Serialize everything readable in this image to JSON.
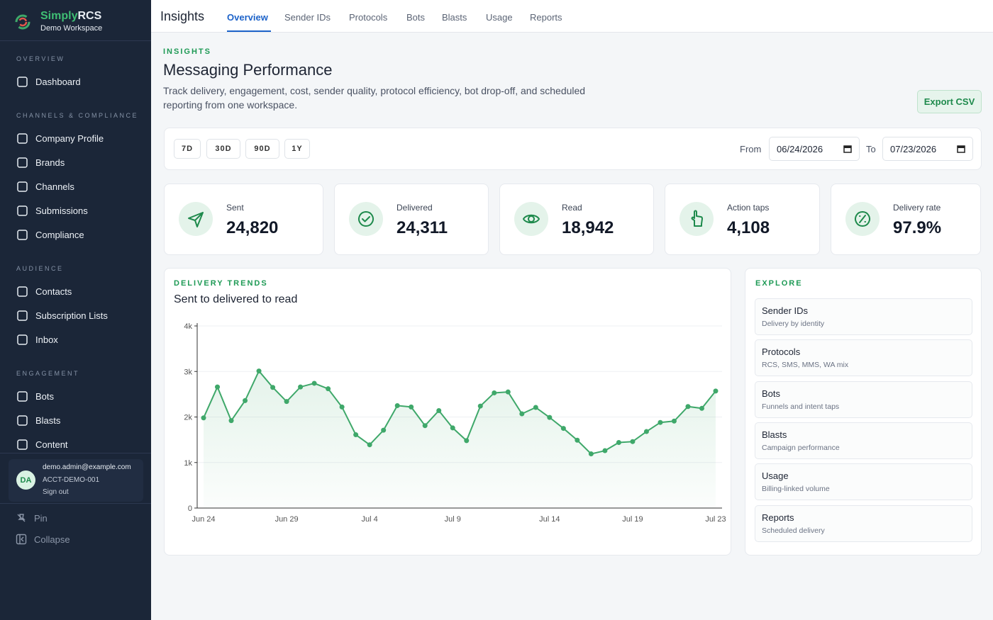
{
  "sidebar": {
    "brand": [
      "Simply",
      "RCS"
    ],
    "workspace": "Demo Workspace",
    "sections": [
      {
        "label": "OVERVIEW",
        "items": [
          "Dashboard"
        ]
      },
      {
        "label": "CHANNELS & COMPLIANCE",
        "items": [
          "Company Profile",
          "Brands",
          "Channels",
          "Submissions",
          "Compliance"
        ]
      },
      {
        "label": "AUDIENCE",
        "items": [
          "Contacts",
          "Subscription Lists",
          "Inbox"
        ]
      },
      {
        "label": "ENGAGEMENT",
        "items": [
          "Bots",
          "Blasts",
          "Content"
        ]
      }
    ],
    "account": {
      "initials": "DA",
      "email": "demo.admin@example.com",
      "id": "ACCT-DEMO-001",
      "signout": "Sign out"
    },
    "footer": [
      "Pin",
      "Collapse"
    ]
  },
  "topbar": {
    "title": "Insights",
    "tabs": [
      "Overview",
      "Sender IDs",
      "Protocols",
      "Bots",
      "Blasts",
      "Usage",
      "Reports"
    ]
  },
  "header": {
    "eyebrow": "INSIGHTS",
    "title": "Messaging Performance",
    "description": "Track delivery, engagement, cost, sender quality, protocol efficiency, bot drop-off, and scheduled reporting from one workspace.",
    "action": "Export CSV"
  },
  "filters": {
    "ranges": [
      "7D",
      "30D",
      "90D",
      "1Y"
    ],
    "from_label": "From",
    "from": "06/24/2026",
    "to_label": "To",
    "to": "07/23/2026"
  },
  "stats": [
    {
      "label": "Sent",
      "value": "24,820"
    },
    {
      "label": "Delivered",
      "value": "24,311"
    },
    {
      "label": "Read",
      "value": "18,942"
    },
    {
      "label": "Action taps",
      "value": "4,108"
    },
    {
      "label": "Delivery rate",
      "value": "97.9%"
    }
  ],
  "chart_data": {
    "type": "line",
    "eyebrow": "DELIVERY TRENDS",
    "title": "Sent to delivered to read",
    "categories": [
      "Jun 24",
      null,
      null,
      null,
      null,
      null,
      "Jun 29",
      null,
      null,
      null,
      null,
      null,
      "Jul 4",
      null,
      null,
      null,
      null,
      null,
      "Jul 9",
      null,
      null,
      null,
      null,
      null,
      null,
      "Jul 14",
      null,
      null,
      null,
      null,
      null,
      "Jul 19",
      null,
      null,
      null,
      null,
      null,
      "Jul 23"
    ],
    "series": [
      {
        "color": "#3fa86a",
        "values": [
          1980,
          2660,
          1920,
          2360,
          3010,
          2650,
          2340,
          2660,
          2740,
          2620,
          2220,
          1610,
          1390,
          1710,
          2250,
          2220,
          1810,
          2140,
          1760,
          1480,
          2240,
          2530,
          2550,
          2070,
          2210,
          1990,
          1750,
          1490,
          1190,
          1260,
          1440,
          1460,
          1680,
          1880,
          1910,
          2230,
          2190,
          2570
        ]
      }
    ],
    "ylim": [
      0,
      4000
    ],
    "yticks": [
      0,
      {
        "value": 1000,
        "label": "1k"
      },
      {
        "value": 2000,
        "label": "2k"
      },
      {
        "value": 3000,
        "label": "3k"
      },
      {
        "value": 4000,
        "label": "4k"
      }
    ],
    "grid": true
  },
  "explore": {
    "label": "EXPLORE",
    "items": [
      {
        "title": "Sender IDs",
        "subtitle": "Delivery by identity"
      },
      {
        "title": "Protocols",
        "subtitle": "RCS, SMS, MMS, WA mix"
      },
      {
        "title": "Bots",
        "subtitle": "Funnels and intent taps"
      },
      {
        "title": "Blasts",
        "subtitle": "Campaign performance"
      },
      {
        "title": "Usage",
        "subtitle": "Billing-linked volume"
      },
      {
        "title": "Reports",
        "subtitle": "Scheduled delivery"
      }
    ]
  }
}
